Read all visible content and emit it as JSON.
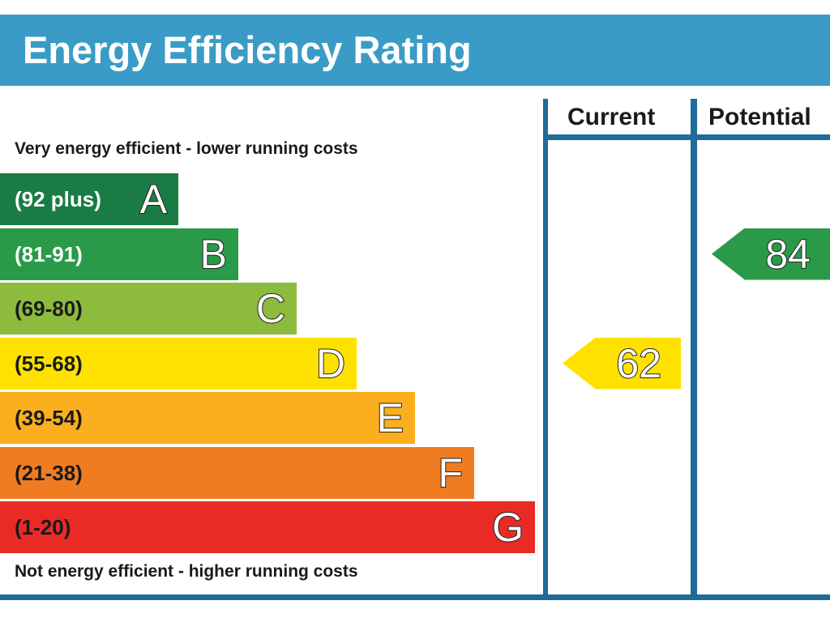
{
  "title": "Energy Efficiency Rating",
  "top_caption": "Very energy efficient - lower running costs",
  "bottom_caption": "Not energy efficient - higher running costs",
  "columns": {
    "current": "Current",
    "potential": "Potential"
  },
  "chart_data": {
    "type": "bar",
    "bands": [
      {
        "letter": "A",
        "range": "(92 plus)",
        "color": "#1a7c44",
        "text_color": "#ffffff"
      },
      {
        "letter": "B",
        "range": "(81-91)",
        "color": "#2a9a48",
        "text_color": "#ffffff"
      },
      {
        "letter": "C",
        "range": "(69-80)",
        "color": "#8dbb3d",
        "text_color": "#1a1a1a"
      },
      {
        "letter": "D",
        "range": "(55-68)",
        "color": "#ffe100",
        "text_color": "#1a1a1a"
      },
      {
        "letter": "E",
        "range": "(39-54)",
        "color": "#fcaf1e",
        "text_color": "#1a1a1a"
      },
      {
        "letter": "F",
        "range": "(21-38)",
        "color": "#f07c22",
        "text_color": "#1a1a1a"
      },
      {
        "letter": "G",
        "range": "(1-20)",
        "color": "#ea2a25",
        "text_color": "#1a1a1a"
      }
    ],
    "current": {
      "value": "62",
      "band": "D",
      "color": "#ffe100"
    },
    "potential": {
      "value": "84",
      "band": "B",
      "color": "#2a9a48"
    }
  }
}
